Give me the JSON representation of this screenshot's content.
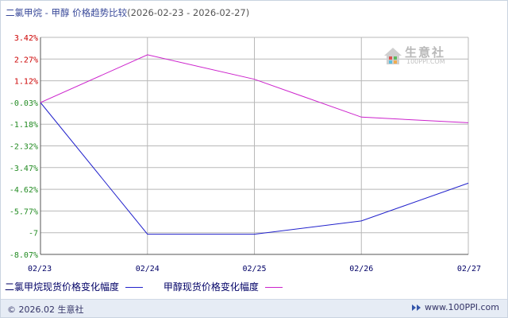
{
  "title": {
    "main": "二氯甲烷 - 甲醇 价格趋势比较",
    "range": "(2026-02-23 - 2026-02-27)"
  },
  "watermark": {
    "name": "生意社",
    "url": "100PPI.COM"
  },
  "footer": {
    "copyright": "© 2026.02 生意社",
    "site": "www.100PPI.com",
    "arrow_icon": "double-arrow-icon"
  },
  "colors": {
    "series1": "#2222cc",
    "series2": "#cc22cc",
    "grid": "#b8b8b8",
    "axis": "#555555",
    "positive_tick": "#cc0000",
    "negative_tick": "#228b22"
  },
  "chart_data": {
    "type": "line",
    "title": "二氯甲烷 - 甲醇 价格趋势比较",
    "categories": [
      "02/23",
      "02/24",
      "02/25",
      "02/26",
      "02/27"
    ],
    "yticks": [
      "3.42%",
      "2.27%",
      "1.12%",
      "-0.03%",
      "-1.18%",
      "-2.32%",
      "-3.47%",
      "-4.62%",
      "-5.77%",
      "-7",
      "-8.07%"
    ],
    "ylim": [
      -8.07,
      3.42
    ],
    "grid": true,
    "legend_position": "bottom-left",
    "series": [
      {
        "name": "二氯甲烷现货价格变化幅度",
        "color": "#2222cc",
        "values": [
          -0.03,
          -7.0,
          -7.0,
          -6.3,
          -4.3
        ]
      },
      {
        "name": "甲醇现货价格变化幅度",
        "color": "#cc22cc",
        "values": [
          -0.03,
          2.5,
          1.2,
          -0.8,
          -1.1
        ]
      }
    ]
  }
}
